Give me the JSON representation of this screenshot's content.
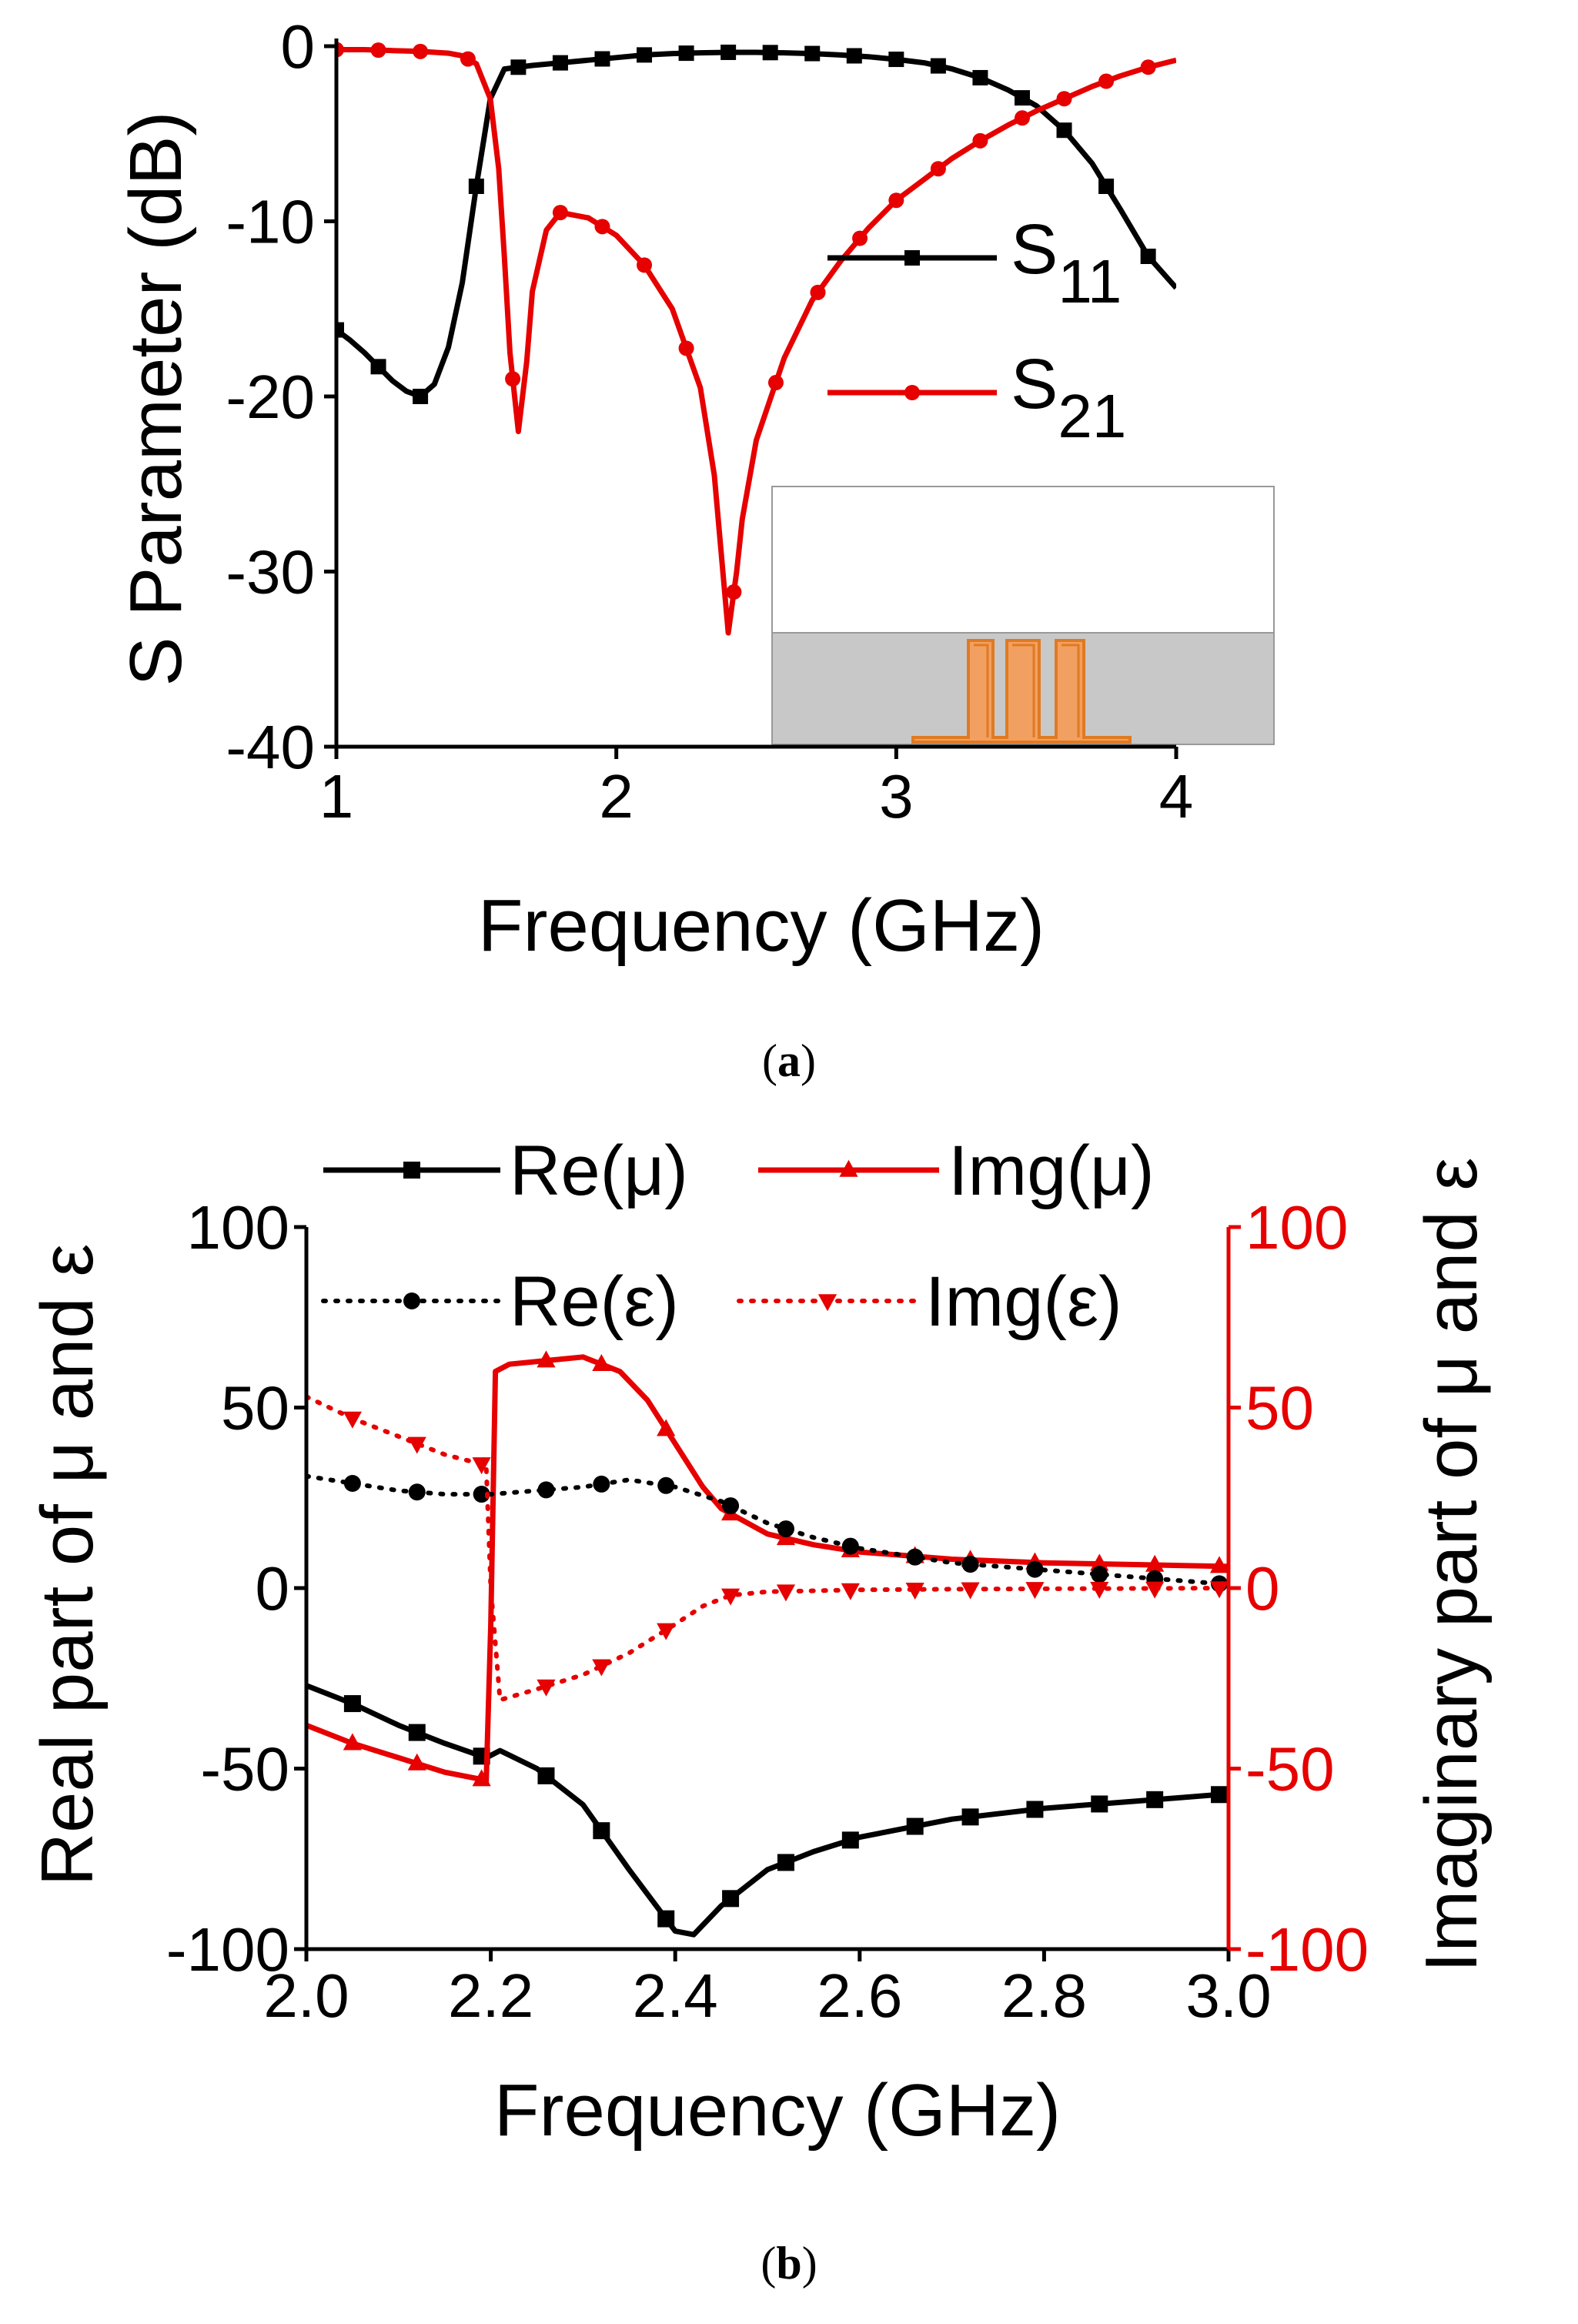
{
  "figure": {
    "captions": {
      "a": "a",
      "b": "b"
    }
  },
  "colors": {
    "black": "#000000",
    "red": "#e60000",
    "inset_top": "#ffffff",
    "inset_bottom": "#c8c8c8",
    "inset_struct": "#f2a061",
    "inset_struct_edge": "#e07a22"
  },
  "chart_data": [
    {
      "id": "a",
      "type": "line",
      "xlabel": "Frequency (GHz)",
      "ylabel": "S Parameter (dB)",
      "xlim": [
        1,
        4
      ],
      "ylim": [
        -40,
        0
      ],
      "xticks": [
        1,
        2,
        3,
        4
      ],
      "yticks": [
        -40,
        -30,
        -20,
        -10,
        0
      ],
      "legend_position": "right",
      "series": [
        {
          "name": "S11",
          "sub": "11",
          "color": "#000000",
          "marker": "square",
          "x": [
            1.0,
            1.05,
            1.1,
            1.15,
            1.2,
            1.25,
            1.3,
            1.35,
            1.4,
            1.45,
            1.5,
            1.55,
            1.6,
            1.7,
            1.8,
            1.9,
            2.0,
            2.1,
            2.2,
            2.3,
            2.4,
            2.5,
            2.6,
            2.7,
            2.8,
            2.9,
            3.0,
            3.1,
            3.2,
            3.3,
            3.4,
            3.5,
            3.6,
            3.7,
            3.8,
            3.9,
            4.0
          ],
          "y": [
            -16.2,
            -16.8,
            -17.5,
            -18.3,
            -19.1,
            -19.7,
            -20.0,
            -19.3,
            -17.2,
            -13.5,
            -8.0,
            -3.0,
            -1.3,
            -1.1,
            -0.95,
            -0.8,
            -0.65,
            -0.5,
            -0.42,
            -0.38,
            -0.35,
            -0.35,
            -0.38,
            -0.42,
            -0.5,
            -0.6,
            -0.75,
            -0.95,
            -1.3,
            -1.8,
            -2.5,
            -3.4,
            -4.8,
            -6.7,
            -9.3,
            -12.0,
            -13.8
          ],
          "marker_x": [
            1.0,
            1.15,
            1.3,
            1.5,
            1.65,
            1.8,
            1.95,
            2.1,
            2.25,
            2.4,
            2.55,
            2.7,
            2.85,
            3.0,
            3.15,
            3.3,
            3.45,
            3.6,
            3.75,
            3.9
          ]
        },
        {
          "name": "S21",
          "sub": "21",
          "color": "#e60000",
          "marker": "circle",
          "x": [
            1.0,
            1.1,
            1.2,
            1.3,
            1.4,
            1.45,
            1.5,
            1.55,
            1.58,
            1.6,
            1.62,
            1.65,
            1.68,
            1.7,
            1.75,
            1.8,
            1.9,
            2.0,
            2.1,
            2.2,
            2.3,
            2.35,
            2.4,
            2.43,
            2.45,
            2.5,
            2.6,
            2.7,
            2.8,
            2.9,
            3.0,
            3.1,
            3.2,
            3.3,
            3.4,
            3.5,
            3.6,
            3.7,
            3.8,
            3.9,
            4.0
          ],
          "y": [
            -0.2,
            -0.2,
            -0.25,
            -0.3,
            -0.4,
            -0.55,
            -1.0,
            -3.0,
            -7.0,
            -12.0,
            -17.5,
            -22.0,
            -18.0,
            -14.0,
            -10.5,
            -9.5,
            -9.8,
            -10.8,
            -12.5,
            -15.0,
            -19.5,
            -24.5,
            -33.5,
            -30.0,
            -27.0,
            -22.5,
            -17.8,
            -14.5,
            -12.3,
            -10.4,
            -8.8,
            -7.6,
            -6.4,
            -5.4,
            -4.5,
            -3.7,
            -3.0,
            -2.3,
            -1.7,
            -1.2,
            -0.8
          ],
          "marker_x": [
            1.0,
            1.15,
            1.3,
            1.47,
            1.63,
            1.8,
            1.95,
            2.1,
            2.25,
            2.42,
            2.57,
            2.72,
            2.87,
            3.0,
            3.15,
            3.3,
            3.45,
            3.6,
            3.75,
            3.9
          ]
        }
      ]
    },
    {
      "id": "b",
      "type": "line",
      "xlabel": "Frequency (GHz)",
      "ylabel": "Real part of μ and ε",
      "y2label": "Imaginary part of μ and ε",
      "xlim": [
        2.0,
        3.0
      ],
      "ylim": [
        -100,
        100
      ],
      "y2lim": [
        -100,
        100
      ],
      "xticks": [
        "2.0",
        "2.2",
        "2.4",
        "2.6",
        "2.8",
        "3.0"
      ],
      "yticks": [
        -100,
        -50,
        0,
        50,
        100
      ],
      "y2ticks": [
        -100,
        -50,
        0,
        50,
        100
      ],
      "legend_position": "top",
      "series": [
        {
          "name": "Re(μ)",
          "axis": "left",
          "color": "#000000",
          "marker": "square",
          "style": "solid",
          "x": [
            2.0,
            2.05,
            2.1,
            2.15,
            2.195,
            2.21,
            2.25,
            2.3,
            2.35,
            2.4,
            2.42,
            2.45,
            2.5,
            2.55,
            2.6,
            2.7,
            2.8,
            2.9,
            3.0
          ],
          "y": [
            -27,
            -32,
            -38,
            -43,
            -47,
            -45,
            -50,
            -60,
            -78,
            -95,
            -96,
            -88,
            -78,
            -73,
            -69,
            -64,
            -61,
            -59,
            -57
          ],
          "marker_x": [
            2.05,
            2.12,
            2.19,
            2.26,
            2.32,
            2.39,
            2.46,
            2.52,
            2.59,
            2.66,
            2.72,
            2.79,
            2.86,
            2.92,
            2.99
          ]
        },
        {
          "name": "Img(μ)",
          "axis": "right",
          "color": "#e60000",
          "marker": "triangle-up",
          "style": "solid",
          "x": [
            2.0,
            2.05,
            2.1,
            2.15,
            2.19,
            2.195,
            2.2,
            2.205,
            2.22,
            2.26,
            2.3,
            2.34,
            2.37,
            2.4,
            2.43,
            2.45,
            2.5,
            2.55,
            2.6,
            2.65,
            2.7,
            2.8,
            2.9,
            3.0
          ],
          "y": [
            -38,
            -43,
            -47,
            -51,
            -53,
            -54,
            -10,
            60,
            62,
            63,
            64,
            60,
            52,
            40,
            28,
            22,
            15,
            12,
            10,
            9,
            8,
            7,
            6.5,
            6
          ],
          "marker_x": [
            2.05,
            2.12,
            2.19,
            2.26,
            2.32,
            2.39,
            2.46,
            2.52,
            2.59,
            2.66,
            2.72,
            2.79,
            2.86,
            2.92,
            2.99
          ]
        },
        {
          "name": "Re(ε)",
          "axis": "left",
          "color": "#000000",
          "marker": "circle",
          "style": "dotted",
          "x": [
            2.0,
            2.05,
            2.1,
            2.15,
            2.2,
            2.25,
            2.3,
            2.35,
            2.4,
            2.45,
            2.5,
            2.55,
            2.6,
            2.7,
            2.8,
            2.9,
            3.0
          ],
          "y": [
            31,
            29,
            27,
            26,
            26,
            27,
            28,
            30,
            28,
            24,
            18,
            14,
            11,
            7,
            5,
            3,
            1
          ],
          "marker_x": [
            2.05,
            2.12,
            2.19,
            2.26,
            2.32,
            2.39,
            2.46,
            2.52,
            2.59,
            2.66,
            2.72,
            2.79,
            2.86,
            2.92,
            2.99
          ]
        },
        {
          "name": "Img(ε)",
          "axis": "right",
          "color": "#e60000",
          "marker": "triangle-down",
          "style": "dotted",
          "x": [
            2.0,
            2.05,
            2.1,
            2.15,
            2.195,
            2.2,
            2.21,
            2.25,
            2.3,
            2.35,
            2.4,
            2.43,
            2.46,
            2.5,
            2.6,
            2.7,
            2.8,
            2.9,
            3.0
          ],
          "y": [
            53,
            47,
            42,
            37,
            34,
            0,
            -31,
            -28,
            -24,
            -18,
            -10,
            -5,
            -2,
            -1,
            -0.5,
            -0.3,
            -0.2,
            -0.1,
            0
          ],
          "marker_x": [
            2.05,
            2.12,
            2.19,
            2.26,
            2.32,
            2.39,
            2.46,
            2.52,
            2.59,
            2.66,
            2.72,
            2.79,
            2.86,
            2.92,
            2.99
          ]
        }
      ]
    }
  ]
}
